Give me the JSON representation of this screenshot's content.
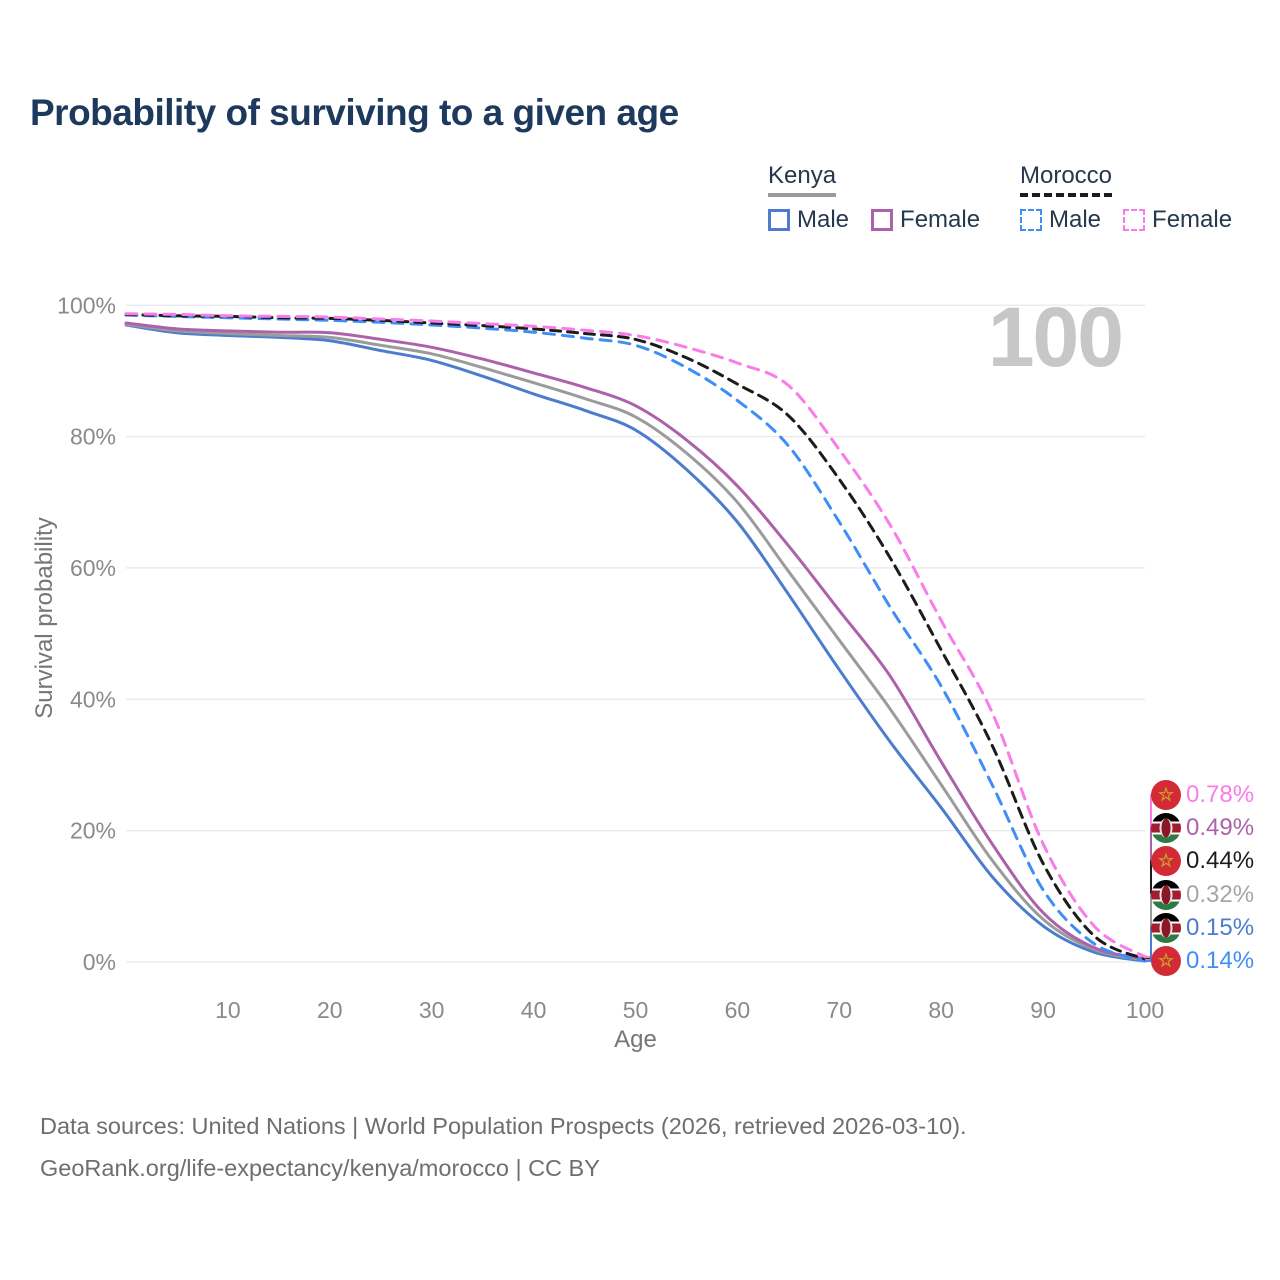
{
  "title": "Probability of surviving to a given age",
  "watermark": "100",
  "legend": {
    "groups": [
      {
        "label": "Kenya",
        "line_style": "solid",
        "underline_color": "#9a9a9a",
        "items": [
          {
            "label": "Male",
            "color": "#4c7cce",
            "style": "solid"
          },
          {
            "label": "Female",
            "color": "#ac62ab",
            "style": "solid"
          }
        ]
      },
      {
        "label": "Morocco",
        "line_style": "dashed",
        "underline_color": "#1c1c1c",
        "items": [
          {
            "label": "Male",
            "color": "#3f8ef7",
            "style": "dashed"
          },
          {
            "label": "Female",
            "color": "#f97ce8",
            "style": "dashed"
          }
        ]
      }
    ]
  },
  "chart_data": {
    "type": "line",
    "title": "Probability of surviving to a given age",
    "xlabel": "Age",
    "ylabel": "Survival probability",
    "x_ticks": [
      10,
      20,
      30,
      40,
      50,
      60,
      70,
      80,
      90,
      100
    ],
    "y_ticks": [
      0,
      20,
      40,
      60,
      80,
      100
    ],
    "y_tick_suffix": "%",
    "xlim": [
      0,
      100
    ],
    "ylim": [
      0,
      100
    ],
    "grid": "horizontal",
    "ages": [
      0,
      5,
      10,
      15,
      20,
      25,
      30,
      35,
      40,
      45,
      50,
      55,
      60,
      65,
      70,
      75,
      80,
      85,
      90,
      95,
      100
    ],
    "series": [
      {
        "id": "kenya_male",
        "name": "Kenya Male",
        "color": "#4c7cce",
        "dash": "",
        "values": [
          97.0,
          95.8,
          95.4,
          95.1,
          94.6,
          93.1,
          91.6,
          89.2,
          86.5,
          84.0,
          81.0,
          75.0,
          67.0,
          56.0,
          44.5,
          33.5,
          23.5,
          13.0,
          5.5,
          1.5,
          0.15
        ]
      },
      {
        "id": "kenya_both",
        "name": "Kenya Both sexes",
        "color": "#9b9b9b",
        "dash": "",
        "values": [
          97.1,
          96.1,
          95.7,
          95.4,
          95.1,
          93.9,
          92.6,
          90.5,
          88.2,
          85.8,
          83.0,
          77.5,
          70.0,
          59.5,
          49.0,
          38.5,
          27.0,
          15.5,
          6.5,
          1.9,
          0.32
        ]
      },
      {
        "id": "kenya_female",
        "name": "Kenya Female",
        "color": "#ac62ab",
        "dash": "",
        "values": [
          97.3,
          96.4,
          96.1,
          95.9,
          95.8,
          94.8,
          93.6,
          91.8,
          89.7,
          87.5,
          84.7,
          79.5,
          72.5,
          63.4,
          53.5,
          43.5,
          30.5,
          18.0,
          7.5,
          2.2,
          0.49
        ]
      },
      {
        "id": "morocco_male",
        "name": "Morocco Male",
        "color": "#3f8ef7",
        "dash": "11 8",
        "values": [
          98.5,
          98.3,
          98.1,
          97.9,
          97.7,
          97.4,
          97.0,
          96.5,
          95.9,
          95.0,
          93.9,
          90.5,
          85.5,
          78.6,
          67.0,
          54.0,
          42.0,
          27.0,
          11.0,
          2.8,
          0.14
        ]
      },
      {
        "id": "morocco_both",
        "name": "Morocco Both sexes",
        "color": "#1c1c1c",
        "dash": "10 7",
        "values": [
          98.6,
          98.4,
          98.3,
          98.1,
          98.0,
          97.7,
          97.3,
          96.9,
          96.4,
          95.7,
          94.8,
          92.0,
          88.0,
          83.2,
          73.5,
          61.5,
          47.5,
          33.0,
          15.0,
          4.0,
          0.44
        ]
      },
      {
        "id": "morocco_female",
        "name": "Morocco Female",
        "color": "#f97ce8",
        "dash": "11 8",
        "values": [
          98.7,
          98.6,
          98.4,
          98.3,
          98.2,
          97.9,
          97.6,
          97.2,
          96.8,
          96.2,
          95.4,
          93.6,
          91.2,
          87.8,
          78.0,
          66.5,
          52.0,
          38.0,
          18.0,
          5.5,
          0.78
        ]
      }
    ]
  },
  "end_labels": [
    {
      "value": "0.78%",
      "series": "morocco_female",
      "flag": "morocco-flag",
      "color": "#f97ce8"
    },
    {
      "value": "0.49%",
      "series": "kenya_female",
      "flag": "kenya-flag",
      "color": "#ac62ab"
    },
    {
      "value": "0.44%",
      "series": "morocco_both",
      "flag": "morocco-flag",
      "color": "#1c1c1c"
    },
    {
      "value": "0.32%",
      "series": "kenya_both",
      "flag": "kenya-flag",
      "color": "#a6a6a6"
    },
    {
      "value": "0.15%",
      "series": "kenya_male",
      "flag": "kenya-flag",
      "color": "#4c7cce"
    },
    {
      "value": "0.14%",
      "series": "morocco_male",
      "flag": "morocco-flag",
      "color": "#3f8ef7"
    }
  ],
  "axes": {
    "x_label": "Age",
    "y_label": "Survival probability"
  },
  "footer": {
    "line1": "Data sources: United Nations | World Population Prospects (2026, retrieved 2026-03-10).",
    "line2": "GeoRank.org/life-expectancy/kenya/morocco | CC BY"
  }
}
